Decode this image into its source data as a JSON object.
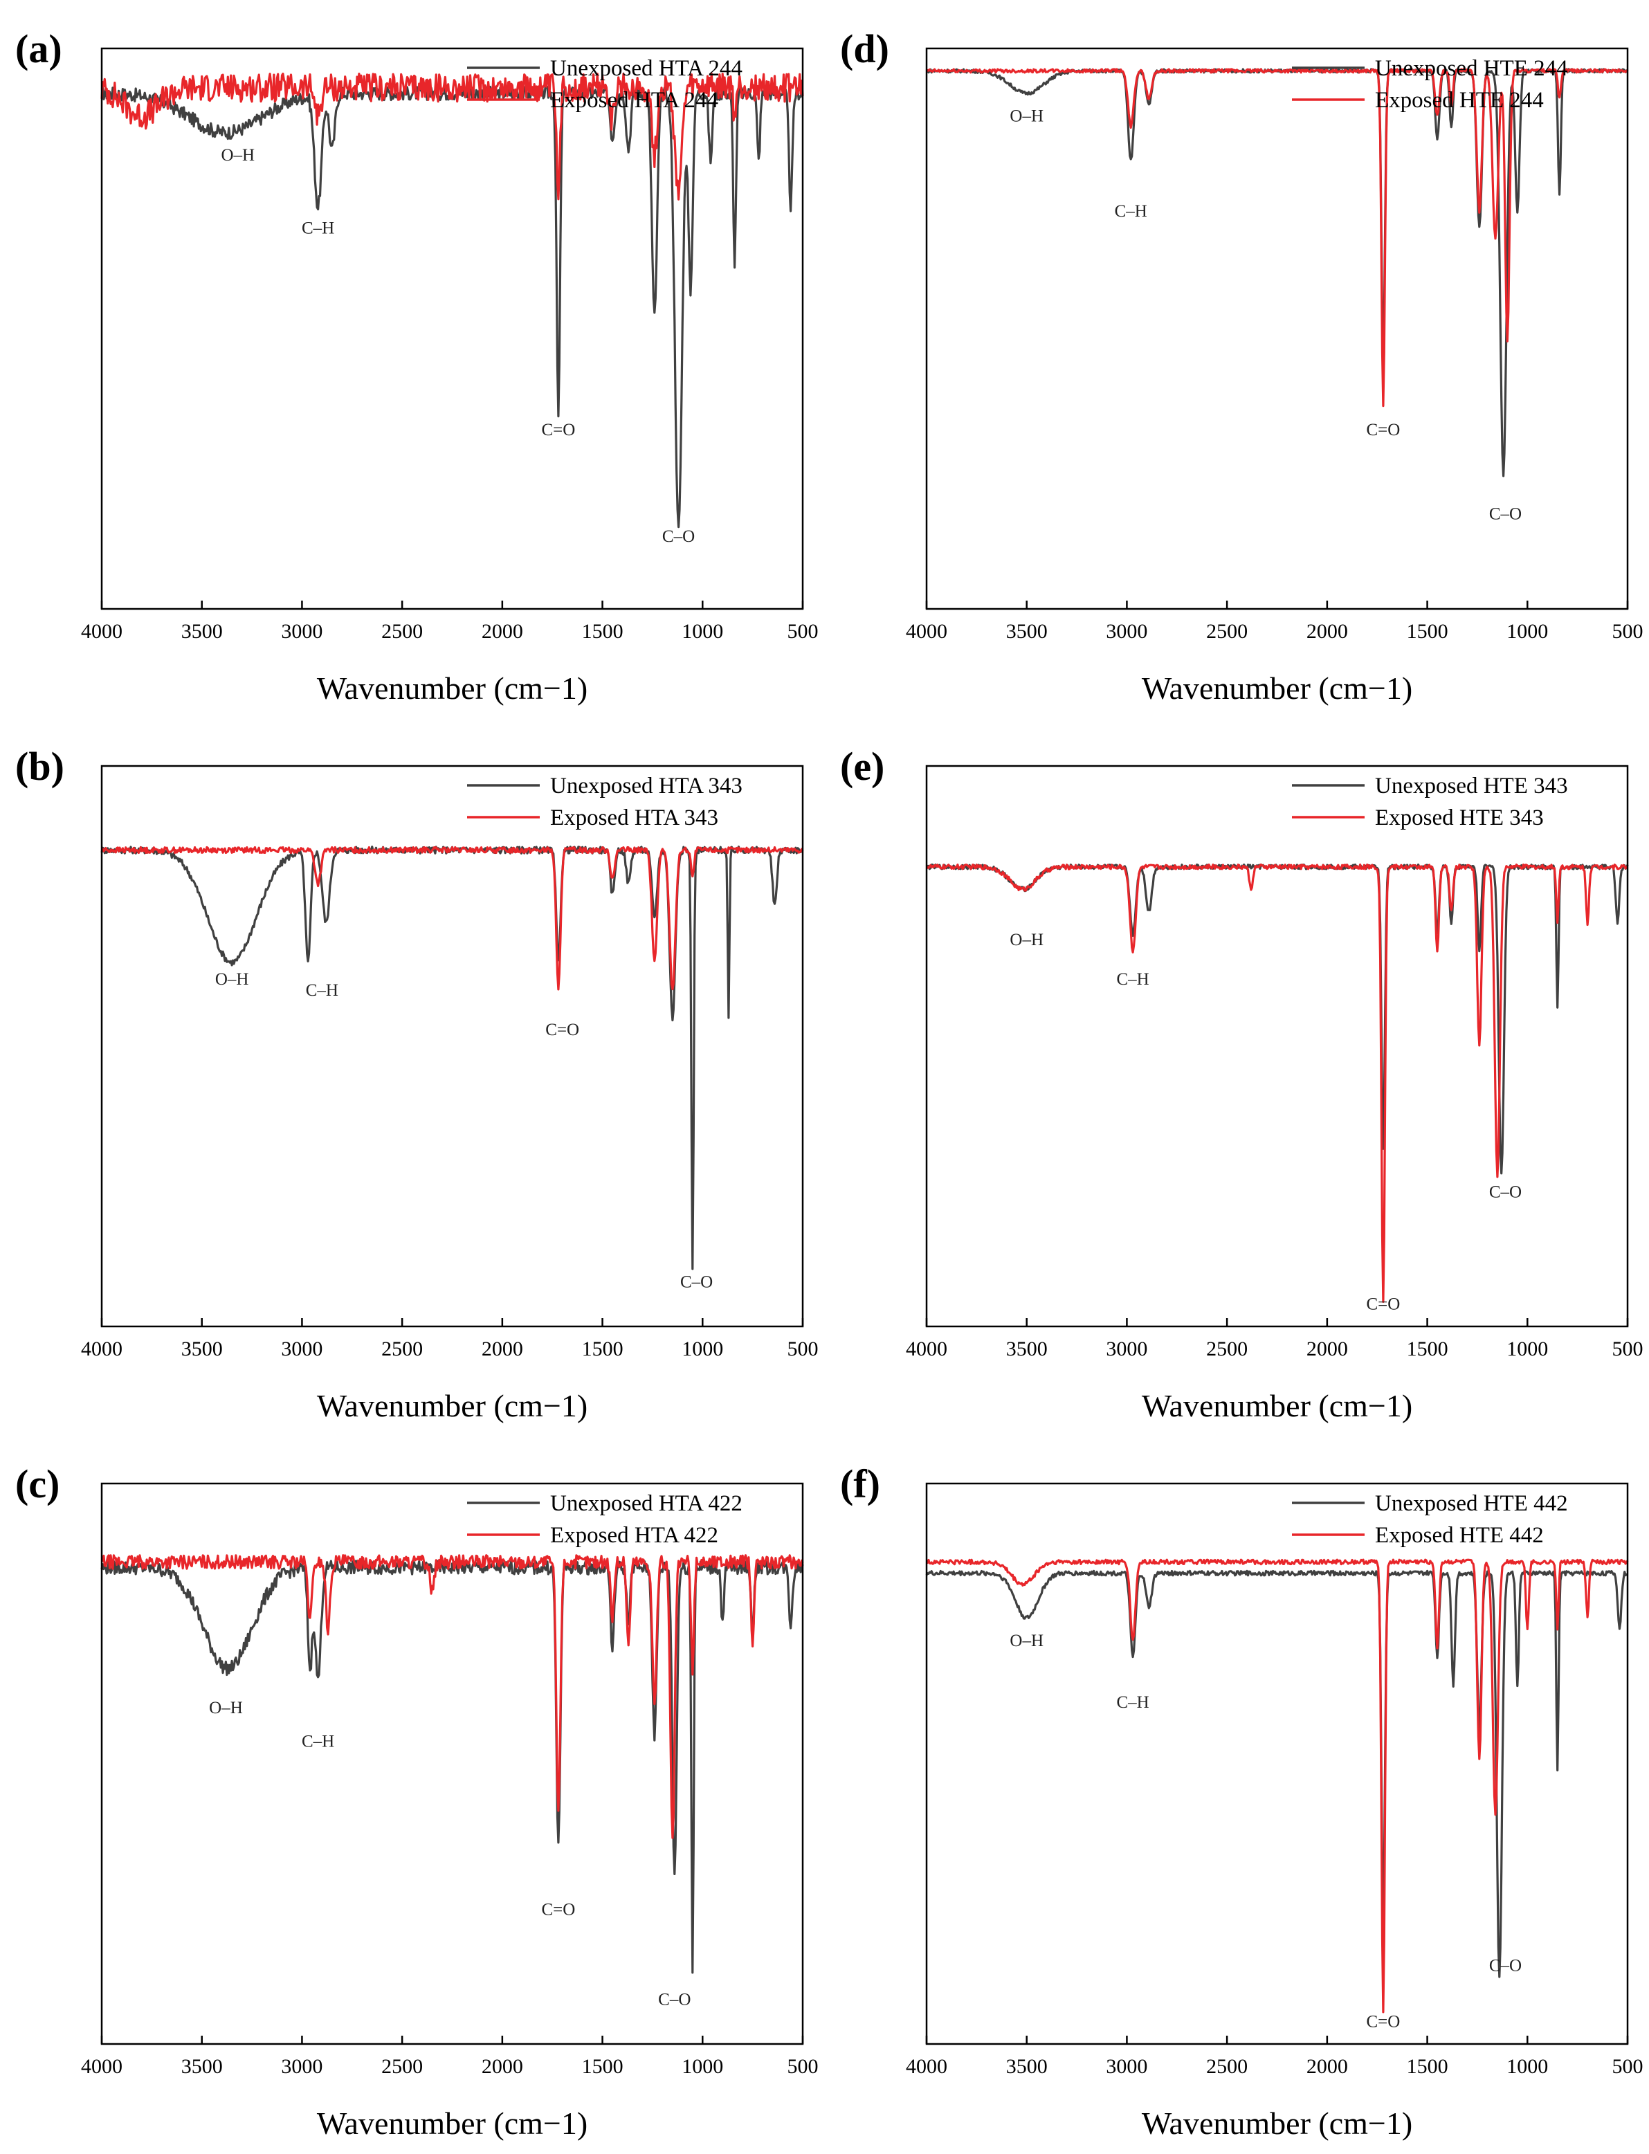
{
  "colors": {
    "unexposed": "#404040",
    "exposed": "#e8262a"
  },
  "chart_data": [
    {
      "id": "a",
      "type": "line",
      "panel_label": "(a)",
      "xlabel": "Wavenumber (cm−1)",
      "xlim": [
        4000,
        500
      ],
      "x_reversed": true,
      "xticks": [
        "4000",
        "3500",
        "3000",
        "2500",
        "2000",
        "1500",
        "1000",
        "500"
      ],
      "series": [
        {
          "name": "Unexposed HTA 244",
          "key": "unexposed",
          "baseline": 0.92,
          "noise": 0.012,
          "peaks": [
            [
              3380,
              0.07,
              260
            ],
            [
              2920,
              0.2,
              25
            ],
            [
              2850,
              0.1,
              20
            ],
            [
              1720,
              0.58,
              12
            ],
            [
              1450,
              0.08,
              15
            ],
            [
              1370,
              0.1,
              15
            ],
            [
              1240,
              0.4,
              18
            ],
            [
              1120,
              0.78,
              25
            ],
            [
              1060,
              0.35,
              15
            ],
            [
              960,
              0.12,
              12
            ],
            [
              840,
              0.3,
              10
            ],
            [
              720,
              0.12,
              10
            ],
            [
              560,
              0.2,
              12
            ]
          ]
        },
        {
          "name": "Exposed HTA 244",
          "key": "exposed",
          "baseline": 0.93,
          "noise": 0.025,
          "peaks": [
            [
              3800,
              0.05,
              120
            ],
            [
              2920,
              0.05,
              20
            ],
            [
              1720,
              0.2,
              12
            ],
            [
              1450,
              0.06,
              15
            ],
            [
              1240,
              0.12,
              18
            ],
            [
              1120,
              0.18,
              25
            ],
            [
              840,
              0.05,
              10
            ]
          ]
        }
      ],
      "annotations": [
        {
          "text": "O–H",
          "x": 3320,
          "y": 0.8
        },
        {
          "text": "C–H",
          "x": 2920,
          "y": 0.67
        },
        {
          "text": "C=O",
          "x": 1720,
          "y": 0.31
        },
        {
          "text": "C–O",
          "x": 1120,
          "y": 0.12
        }
      ]
    },
    {
      "id": "b",
      "type": "line",
      "panel_label": "(b)",
      "xlabel": "Wavenumber (cm−1)",
      "xlim": [
        4000,
        500
      ],
      "x_reversed": true,
      "xticks": [
        "4000",
        "3500",
        "3000",
        "2500",
        "2000",
        "1500",
        "1000",
        "500"
      ],
      "series": [
        {
          "name": "Unexposed HTA 343",
          "key": "unexposed",
          "baseline": 0.85,
          "noise": 0.006,
          "peaks": [
            [
              3350,
              0.2,
              170
            ],
            [
              2970,
              0.2,
              18
            ],
            [
              2880,
              0.13,
              25
            ],
            [
              1720,
              0.2,
              15
            ],
            [
              1450,
              0.08,
              15
            ],
            [
              1370,
              0.06,
              15
            ],
            [
              1240,
              0.12,
              18
            ],
            [
              1150,
              0.3,
              20
            ],
            [
              1050,
              0.75,
              8
            ],
            [
              870,
              0.3,
              6
            ],
            [
              640,
              0.1,
              15
            ]
          ]
        },
        {
          "name": "Exposed HTA 343",
          "key": "exposed",
          "baseline": 0.85,
          "noise": 0.005,
          "peaks": [
            [
              2920,
              0.06,
              20
            ],
            [
              1720,
              0.25,
              15
            ],
            [
              1450,
              0.05,
              15
            ],
            [
              1240,
              0.2,
              18
            ],
            [
              1150,
              0.25,
              20
            ],
            [
              1050,
              0.05,
              10
            ]
          ]
        }
      ],
      "annotations": [
        {
          "text": "O–H",
          "x": 3350,
          "y": 0.61
        },
        {
          "text": "C–H",
          "x": 2900,
          "y": 0.59
        },
        {
          "text": "C=O",
          "x": 1700,
          "y": 0.52
        },
        {
          "text": "C–O",
          "x": 1030,
          "y": 0.07
        }
      ]
    },
    {
      "id": "c",
      "type": "line",
      "panel_label": "(c)",
      "xlabel": "Wavenumber (cm−1)",
      "xlim": [
        4000,
        500
      ],
      "x_reversed": true,
      "xticks": [
        "4000",
        "3500",
        "3000",
        "2500",
        "2000",
        "1500",
        "1000",
        "500"
      ],
      "series": [
        {
          "name": "Unexposed HTA 422",
          "key": "unexposed",
          "baseline": 0.85,
          "noise": 0.012,
          "peaks": [
            [
              3370,
              0.18,
              170
            ],
            [
              2960,
              0.18,
              15
            ],
            [
              2920,
              0.2,
              20
            ],
            [
              1720,
              0.5,
              14
            ],
            [
              1450,
              0.15,
              12
            ],
            [
              1370,
              0.1,
              12
            ],
            [
              1240,
              0.3,
              15
            ],
            [
              1140,
              0.55,
              15
            ],
            [
              1050,
              0.72,
              8
            ],
            [
              900,
              0.1,
              10
            ],
            [
              750,
              0.12,
              10
            ],
            [
              560,
              0.1,
              12
            ]
          ]
        },
        {
          "name": "Exposed HTA 422",
          "key": "exposed",
          "baseline": 0.86,
          "noise": 0.012,
          "peaks": [
            [
              2960,
              0.1,
              15
            ],
            [
              2870,
              0.12,
              15
            ],
            [
              2350,
              0.05,
              15
            ],
            [
              1720,
              0.45,
              14
            ],
            [
              1450,
              0.1,
              12
            ],
            [
              1370,
              0.15,
              12
            ],
            [
              1240,
              0.25,
              15
            ],
            [
              1150,
              0.5,
              15
            ],
            [
              1050,
              0.2,
              10
            ],
            [
              750,
              0.15,
              10
            ]
          ]
        }
      ],
      "annotations": [
        {
          "text": "O–H",
          "x": 3380,
          "y": 0.59
        },
        {
          "text": "C–H",
          "x": 2920,
          "y": 0.53
        },
        {
          "text": "C=O",
          "x": 1720,
          "y": 0.23
        },
        {
          "text": "C–O",
          "x": 1140,
          "y": 0.07
        }
      ]
    },
    {
      "id": "d",
      "type": "line",
      "panel_label": "(d)",
      "xlabel": "Wavenumber (cm−1)",
      "xlim": [
        4000,
        500
      ],
      "x_reversed": true,
      "xticks": [
        "4000",
        "3500",
        "3000",
        "2500",
        "2000",
        "1500",
        "1000",
        "500"
      ],
      "series": [
        {
          "name": "Unexposed HTE 244",
          "key": "unexposed",
          "baseline": 0.96,
          "noise": 0.003,
          "peaks": [
            [
              3500,
              0.04,
              120
            ],
            [
              2980,
              0.16,
              20
            ],
            [
              2890,
              0.06,
              20
            ],
            [
              1720,
              0.52,
              12
            ],
            [
              1450,
              0.12,
              15
            ],
            [
              1380,
              0.1,
              12
            ],
            [
              1240,
              0.28,
              18
            ],
            [
              1120,
              0.72,
              22
            ],
            [
              1050,
              0.25,
              15
            ],
            [
              840,
              0.22,
              10
            ]
          ]
        },
        {
          "name": "Exposed HTE 244",
          "key": "exposed",
          "baseline": 0.96,
          "noise": 0.003,
          "peaks": [
            [
              2980,
              0.1,
              20
            ],
            [
              2890,
              0.05,
              20
            ],
            [
              1720,
              0.6,
              12
            ],
            [
              1450,
              0.08,
              15
            ],
            [
              1380,
              0.06,
              12
            ],
            [
              1240,
              0.25,
              18
            ],
            [
              1160,
              0.3,
              20
            ],
            [
              1100,
              0.48,
              15
            ],
            [
              840,
              0.05,
              10
            ]
          ]
        }
      ],
      "annotations": [
        {
          "text": "O–H",
          "x": 3500,
          "y": 0.87
        },
        {
          "text": "C–H",
          "x": 2980,
          "y": 0.7
        },
        {
          "text": "C=O",
          "x": 1720,
          "y": 0.31
        },
        {
          "text": "C–O",
          "x": 1110,
          "y": 0.16
        }
      ]
    },
    {
      "id": "e",
      "type": "line",
      "panel_label": "(e)",
      "xlabel": "Wavenumber (cm−1)",
      "xlim": [
        4000,
        500
      ],
      "x_reversed": true,
      "xticks": [
        "4000",
        "3500",
        "3000",
        "2500",
        "2000",
        "1500",
        "1000",
        "500"
      ],
      "series": [
        {
          "name": "Unexposed HTE 343",
          "key": "unexposed",
          "baseline": 0.82,
          "noise": 0.004,
          "peaks": [
            [
              3520,
              0.04,
              90
            ],
            [
              2970,
              0.12,
              20
            ],
            [
              2890,
              0.08,
              20
            ],
            [
              1720,
              0.5,
              12
            ],
            [
              1450,
              0.12,
              12
            ],
            [
              1380,
              0.1,
              12
            ],
            [
              1240,
              0.15,
              12
            ],
            [
              1130,
              0.55,
              18
            ],
            [
              850,
              0.25,
              8
            ],
            [
              550,
              0.1,
              12
            ]
          ]
        },
        {
          "name": "Exposed HTE 343",
          "key": "exposed",
          "baseline": 0.82,
          "noise": 0.004,
          "peaks": [
            [
              3520,
              0.04,
              90
            ],
            [
              2970,
              0.15,
              20
            ],
            [
              2380,
              0.04,
              12
            ],
            [
              1720,
              0.78,
              12
            ],
            [
              1450,
              0.15,
              12
            ],
            [
              1380,
              0.08,
              12
            ],
            [
              1240,
              0.32,
              15
            ],
            [
              1150,
              0.55,
              18
            ],
            [
              850,
              0.1,
              8
            ],
            [
              700,
              0.1,
              10
            ]
          ]
        }
      ],
      "annotations": [
        {
          "text": "O–H",
          "x": 3500,
          "y": 0.68
        },
        {
          "text": "C–H",
          "x": 2970,
          "y": 0.61
        },
        {
          "text": "C=O",
          "x": 1720,
          "y": 0.03
        },
        {
          "text": "C–O",
          "x": 1110,
          "y": 0.23
        }
      ]
    },
    {
      "id": "f",
      "type": "line",
      "panel_label": "(f)",
      "xlabel": "Wavenumber (cm−1)",
      "xlim": [
        4000,
        500
      ],
      "x_reversed": true,
      "xticks": [
        "4000",
        "3500",
        "3000",
        "2500",
        "2000",
        "1500",
        "1000",
        "500"
      ],
      "series": [
        {
          "name": "Unexposed HTE 442",
          "key": "unexposed",
          "baseline": 0.84,
          "noise": 0.004,
          "peaks": [
            [
              3500,
              0.08,
              80
            ],
            [
              2970,
              0.15,
              18
            ],
            [
              2890,
              0.06,
              20
            ],
            [
              1720,
              0.63,
              12
            ],
            [
              1450,
              0.15,
              12
            ],
            [
              1370,
              0.2,
              12
            ],
            [
              1240,
              0.28,
              15
            ],
            [
              1140,
              0.72,
              18
            ],
            [
              1050,
              0.2,
              10
            ],
            [
              850,
              0.35,
              8
            ],
            [
              540,
              0.1,
              12
            ]
          ]
        },
        {
          "name": "Exposed HTE 442",
          "key": "exposed",
          "baseline": 0.86,
          "noise": 0.004,
          "peaks": [
            [
              3520,
              0.04,
              80
            ],
            [
              2970,
              0.14,
              18
            ],
            [
              1720,
              0.8,
              12
            ],
            [
              1450,
              0.15,
              12
            ],
            [
              1240,
              0.35,
              15
            ],
            [
              1160,
              0.45,
              18
            ],
            [
              1000,
              0.12,
              10
            ],
            [
              850,
              0.12,
              8
            ],
            [
              700,
              0.1,
              10
            ]
          ]
        }
      ],
      "annotations": [
        {
          "text": "O–H",
          "x": 3500,
          "y": 0.71
        },
        {
          "text": "C–H",
          "x": 2970,
          "y": 0.6
        },
        {
          "text": "C=O",
          "x": 1720,
          "y": 0.03
        },
        {
          "text": "C–O",
          "x": 1110,
          "y": 0.13
        }
      ]
    }
  ]
}
